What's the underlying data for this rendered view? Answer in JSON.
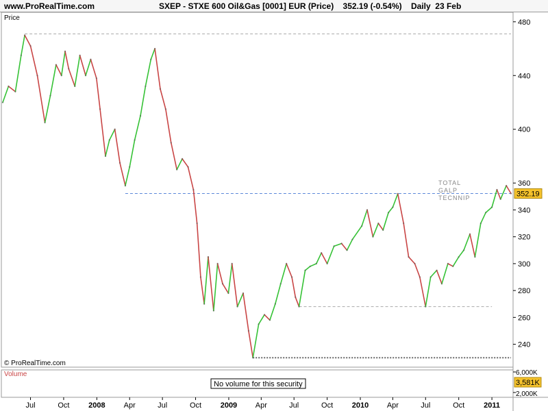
{
  "header": {
    "site": "www.ProRealTime.com",
    "title": "SXEP - STXE 600 Oil&Gas [0001] EUR (Price)    352.19 (-0.54%)    Daily  23 Feb"
  },
  "price_panel": {
    "label": "Price",
    "copyright": "© ProRealTime.com"
  },
  "annotations": [
    "TOTAL",
    "GALP",
    "TECNNIP"
  ],
  "last_price_label": "352.19",
  "volume_panel": {
    "label": "Volume",
    "message": "No volume for this security",
    "ticks": [
      "6,000K",
      "2,000K"
    ],
    "last_label": "3,581K"
  },
  "colors": {
    "up": "#35c235",
    "down": "#c94545",
    "hline": "#5a87d8",
    "support": "#aaaaaa",
    "bottom_line": "#666666",
    "label_bg": "#f5c22c"
  },
  "chart_data": {
    "type": "line",
    "title": "SXEP - STXE 600 Oil&Gas [0001] EUR (Price)",
    "ylim": [
      225,
      485
    ],
    "y_ticks": [
      480,
      440,
      400,
      360,
      340,
      320,
      300,
      280,
      260,
      240
    ],
    "x_ticks": [
      {
        "label": "Jul",
        "date": "2007-07-01"
      },
      {
        "label": "Oct",
        "date": "2007-10-01"
      },
      {
        "label": "2008",
        "date": "2008-01-01",
        "bold": true
      },
      {
        "label": "Apr",
        "date": "2008-04-01"
      },
      {
        "label": "Jul",
        "date": "2008-07-01"
      },
      {
        "label": "Oct",
        "date": "2008-10-01"
      },
      {
        "label": "2009",
        "date": "2009-01-01",
        "bold": true
      },
      {
        "label": "Apr",
        "date": "2009-04-01"
      },
      {
        "label": "Jul",
        "date": "2009-07-01"
      },
      {
        "label": "Oct",
        "date": "2009-10-01"
      },
      {
        "label": "2010",
        "date": "2010-01-01",
        "bold": true
      },
      {
        "label": "Apr",
        "date": "2010-04-01"
      },
      {
        "label": "Jul",
        "date": "2010-07-01"
      },
      {
        "label": "Oct",
        "date": "2010-10-01"
      },
      {
        "label": "2011",
        "date": "2011-01-01",
        "bold": true
      }
    ],
    "last_value": 352.19,
    "change_pct": -0.54,
    "series": [
      {
        "points": [
          [
            "2007-04-15",
            420
          ],
          [
            "2007-05-01",
            432
          ],
          [
            "2007-05-20",
            428
          ],
          [
            "2007-06-05",
            455
          ],
          [
            "2007-06-15",
            470
          ],
          [
            "2007-07-01",
            462
          ],
          [
            "2007-07-20",
            440
          ],
          [
            "2007-08-10",
            405
          ],
          [
            "2007-08-25",
            425
          ],
          [
            "2007-09-10",
            448
          ],
          [
            "2007-09-25",
            440
          ],
          [
            "2007-10-05",
            458
          ],
          [
            "2007-10-15",
            445
          ],
          [
            "2007-11-01",
            432
          ],
          [
            "2007-11-15",
            455
          ],
          [
            "2007-12-01",
            440
          ],
          [
            "2007-12-15",
            452
          ],
          [
            "2007-12-31",
            438
          ],
          [
            "2008-01-10",
            415
          ],
          [
            "2008-01-25",
            380
          ],
          [
            "2008-02-05",
            392
          ],
          [
            "2008-02-20",
            400
          ],
          [
            "2008-03-05",
            375
          ],
          [
            "2008-03-20",
            358
          ],
          [
            "2008-04-01",
            372
          ],
          [
            "2008-04-15",
            392
          ],
          [
            "2008-05-01",
            410
          ],
          [
            "2008-05-15",
            432
          ],
          [
            "2008-05-30",
            452
          ],
          [
            "2008-06-10",
            460
          ],
          [
            "2008-06-25",
            430
          ],
          [
            "2008-07-10",
            415
          ],
          [
            "2008-07-25",
            390
          ],
          [
            "2008-08-10",
            370
          ],
          [
            "2008-08-25",
            378
          ],
          [
            "2008-09-10",
            372
          ],
          [
            "2008-09-25",
            355
          ],
          [
            "2008-10-05",
            330
          ],
          [
            "2008-10-15",
            290
          ],
          [
            "2008-10-25",
            270
          ],
          [
            "2008-11-05",
            305
          ],
          [
            "2008-11-20",
            265
          ],
          [
            "2008-12-01",
            300
          ],
          [
            "2008-12-15",
            285
          ],
          [
            "2008-12-31",
            278
          ],
          [
            "2009-01-10",
            300
          ],
          [
            "2009-01-25",
            268
          ],
          [
            "2009-02-10",
            278
          ],
          [
            "2009-02-25",
            250
          ],
          [
            "2009-03-09",
            230
          ],
          [
            "2009-03-25",
            255
          ],
          [
            "2009-04-10",
            262
          ],
          [
            "2009-04-25",
            258
          ],
          [
            "2009-05-10",
            270
          ],
          [
            "2009-05-25",
            285
          ],
          [
            "2009-06-10",
            300
          ],
          [
            "2009-06-25",
            290
          ],
          [
            "2009-07-05",
            275
          ],
          [
            "2009-07-15",
            268
          ],
          [
            "2009-08-01",
            295
          ],
          [
            "2009-08-15",
            298
          ],
          [
            "2009-09-01",
            300
          ],
          [
            "2009-09-15",
            308
          ],
          [
            "2009-10-01",
            300
          ],
          [
            "2009-10-20",
            313
          ],
          [
            "2009-11-10",
            315
          ],
          [
            "2009-11-25",
            310
          ],
          [
            "2009-12-10",
            318
          ],
          [
            "2010-01-05",
            328
          ],
          [
            "2010-01-20",
            340
          ],
          [
            "2010-02-05",
            320
          ],
          [
            "2010-02-20",
            330
          ],
          [
            "2010-03-05",
            325
          ],
          [
            "2010-03-20",
            338
          ],
          [
            "2010-04-01",
            342
          ],
          [
            "2010-04-15",
            352
          ],
          [
            "2010-05-01",
            330
          ],
          [
            "2010-05-15",
            305
          ],
          [
            "2010-06-01",
            300
          ],
          [
            "2010-06-15",
            290
          ],
          [
            "2010-07-01",
            268
          ],
          [
            "2010-07-15",
            290
          ],
          [
            "2010-08-01",
            295
          ],
          [
            "2010-08-15",
            285
          ],
          [
            "2010-09-01",
            300
          ],
          [
            "2010-09-15",
            298
          ],
          [
            "2010-10-01",
            305
          ],
          [
            "2010-10-15",
            310
          ],
          [
            "2010-11-01",
            322
          ],
          [
            "2010-11-15",
            305
          ],
          [
            "2010-12-01",
            330
          ],
          [
            "2010-12-15",
            338
          ],
          [
            "2011-01-01",
            342
          ],
          [
            "2011-01-15",
            355
          ],
          [
            "2011-01-25",
            348
          ],
          [
            "2011-02-10",
            358
          ],
          [
            "2011-02-23",
            352.19
          ]
        ]
      }
    ],
    "reference_lines": [
      {
        "y": 352.19,
        "from": "2008-03-20",
        "style": "dashed",
        "color": "#5a87d8"
      },
      {
        "y": 471,
        "from": "2007-06-15",
        "style": "dashed",
        "color": "#aaaaaa"
      },
      {
        "y": 268,
        "from": "2009-07-15",
        "style": "dashed",
        "color": "#aaaaaa",
        "to": "2011-01-01"
      },
      {
        "y": 230,
        "from": "2009-03-09",
        "style": "dotted",
        "color": "#666666"
      }
    ]
  }
}
